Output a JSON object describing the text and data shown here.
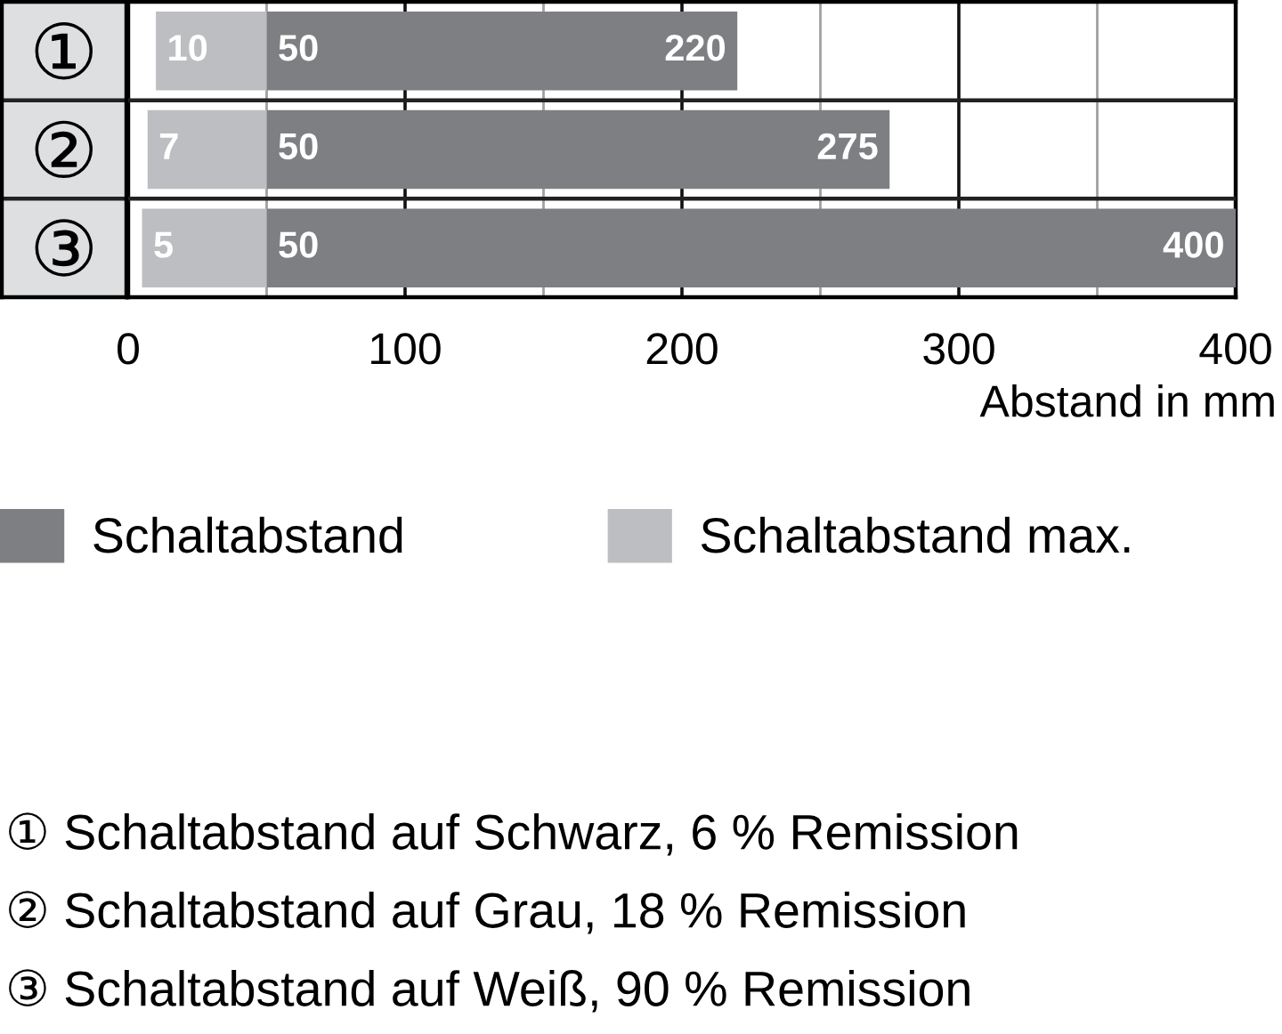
{
  "chart_data": {
    "type": "bar",
    "orientation": "horizontal",
    "categories": [
      "①",
      "②",
      "③"
    ],
    "series": [
      {
        "name": "Schaltabstand",
        "color": "#7e7f83",
        "base": [
          50,
          50,
          50
        ],
        "values": [
          170,
          225,
          350
        ],
        "value_labels": [
          "220",
          "275",
          "400"
        ]
      },
      {
        "name": "Schaltabstand max.",
        "color": "#bdbec1",
        "base": [
          10,
          7,
          5
        ],
        "values": [
          40,
          43,
          45
        ],
        "value_labels": [
          "50",
          "50",
          "50"
        ]
      }
    ],
    "xlim": [
      0,
      400
    ],
    "xticks": [
      0,
      {
        "value": 50,
        "label": null
      },
      100,
      {
        "value": 150,
        "label": null
      },
      200,
      {
        "value": 250,
        "label": null
      },
      300,
      {
        "value": 350,
        "label": null
      },
      400
    ],
    "xlabel": "Abstand in mm",
    "grid": "x",
    "legend": "bottom",
    "annotations": [
      {
        "text": "10",
        "x": 10,
        "y": "①"
      },
      {
        "text": "7",
        "x": 7,
        "y": "②"
      },
      {
        "text": "5",
        "x": 5,
        "y": "③"
      },
      "① Schaltabstand auf Schwarz, 6 % Remission",
      "② Schaltabstand auf Grau, 18 % Remission",
      "③ Schaltabstand auf Weiß, 90 % Remission"
    ]
  }
}
